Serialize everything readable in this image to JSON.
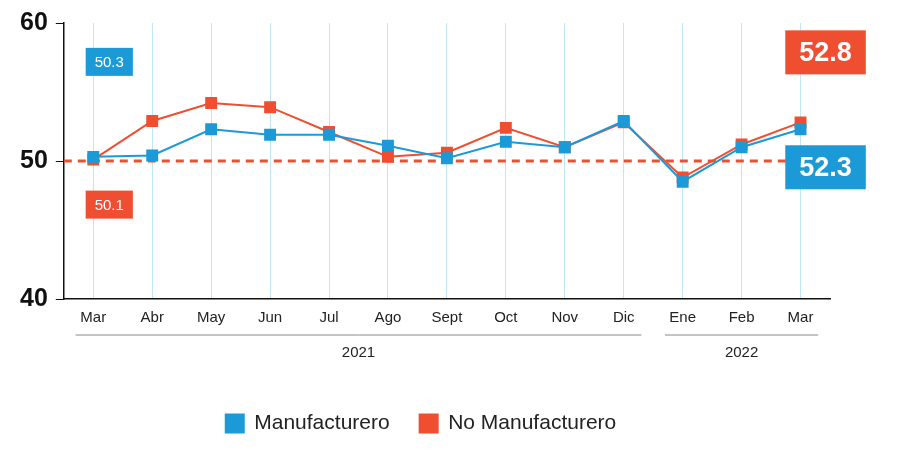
{
  "chart_data": {
    "type": "line",
    "categories": [
      "Mar",
      "Abr",
      "May",
      "Jun",
      "Jul",
      "Ago",
      "Sept",
      "Oct",
      "Nov",
      "Dic",
      "Ene",
      "Feb",
      "Mar"
    ],
    "category_groups": [
      "2021",
      "2021",
      "2021",
      "2021",
      "2021",
      "2021",
      "2021",
      "2021",
      "2021",
      "2021",
      "2022",
      "2022",
      "2022"
    ],
    "ylim": [
      40,
      60
    ],
    "yticks": [
      40,
      50,
      60
    ],
    "grid": "x",
    "legend": "bottom",
    "reference_line": {
      "value": 50,
      "color": "#f04e30",
      "line_style": "dashed"
    },
    "series": [
      {
        "name": "Manufacturero",
        "color": "#1b9ad7",
        "marker": "square",
        "line_style": "solid",
        "values": [
          50.3,
          50.4,
          52.3,
          51.9,
          51.9,
          51.1,
          50.2,
          51.4,
          51.0,
          52.9,
          48.5,
          51.0,
          52.3
        ],
        "value_labels": [
          "50.3",
          null,
          null,
          null,
          null,
          null,
          null,
          null,
          null,
          null,
          null,
          null,
          "52.3"
        ]
      },
      {
        "name": "No Manufacturero",
        "color": "#f04e30",
        "marker": "square",
        "line_style": "solid",
        "values": [
          50.1,
          52.9,
          54.2,
          53.9,
          52.1,
          50.3,
          50.6,
          52.4,
          51.0,
          52.8,
          48.8,
          51.2,
          52.8
        ],
        "value_labels": [
          "50.1",
          null,
          null,
          null,
          null,
          null,
          null,
          null,
          null,
          null,
          null,
          null,
          "52.8"
        ]
      }
    ]
  }
}
